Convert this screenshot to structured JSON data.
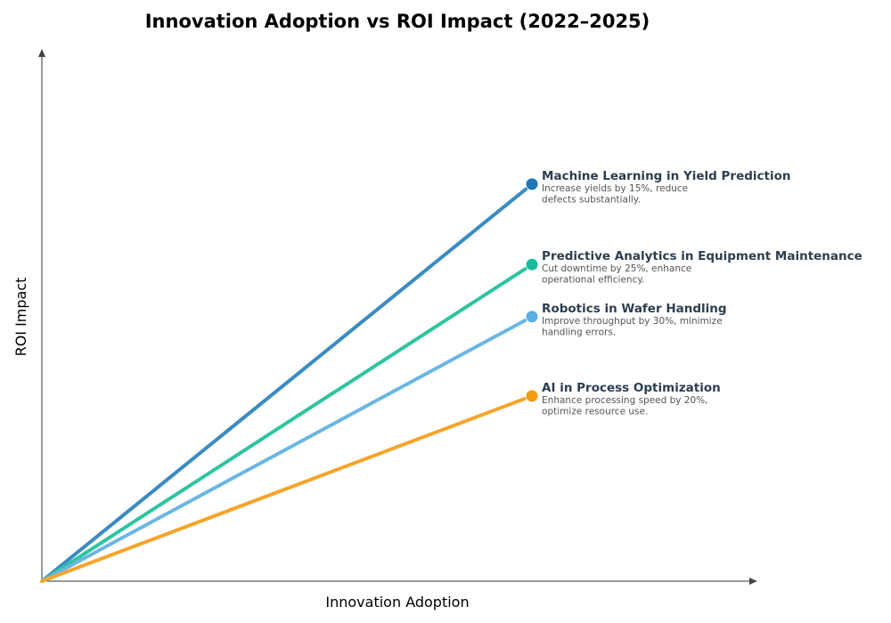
{
  "chart_data": {
    "type": "line",
    "title": "Innovation Adoption vs ROI Impact (2022–2025)",
    "xlabel": "Innovation Adoption",
    "ylabel": "ROI Impact",
    "xlim": [
      0,
      10
    ],
    "ylim": [
      0,
      10
    ],
    "grid": false,
    "ticks_shown": false,
    "legend": "inline labels at line ends",
    "series": [
      {
        "name": "Machine Learning in Yield Prediction",
        "desc": [
          "Increase yields by 15%, reduce",
          "defects substantially."
        ],
        "x": [
          0,
          6.85
        ],
        "y": [
          0,
          7.46
        ],
        "color": "#1f77b4",
        "line_color": "#3a8bc2"
      },
      {
        "name": "Predictive Analytics in Equipment Maintenance",
        "desc": [
          "Cut downtime by 25%, enhance",
          "operational efficiency."
        ],
        "x": [
          0,
          6.85
        ],
        "y": [
          0,
          5.95
        ],
        "color": "#1abc9c",
        "line_color": "#2ec4a0"
      },
      {
        "name": "Robotics in Wafer Handling",
        "desc": [
          "Improve throughput by 30%, minimize",
          "handling errors."
        ],
        "x": [
          0,
          6.85
        ],
        "y": [
          0,
          4.97
        ],
        "color": "#5dade2",
        "line_color": "#6ab6e6"
      },
      {
        "name": "AI in Process Optimization",
        "desc": [
          "Enhance processing speed by 20%,",
          "optimize resource use."
        ],
        "x": [
          0,
          6.85
        ],
        "y": [
          0,
          3.48
        ],
        "color": "#f39c12",
        "line_color": "#f5a52a"
      }
    ]
  }
}
